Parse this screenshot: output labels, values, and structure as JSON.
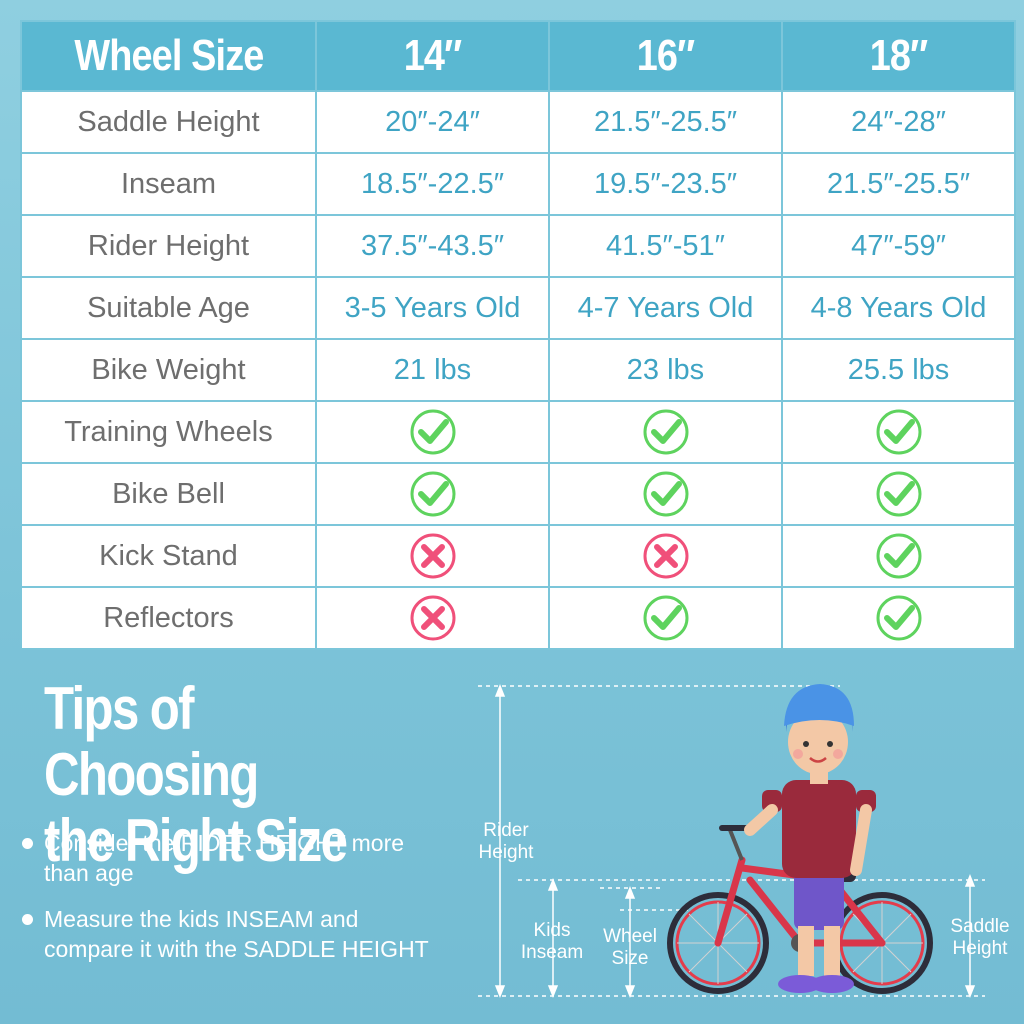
{
  "table": {
    "header": [
      "Wheel Size",
      "14″",
      "16″",
      "18″"
    ],
    "rows": [
      {
        "label": "Saddle Height",
        "values": [
          "20″-24″",
          "21.5″-25.5″",
          "24″-28″"
        ]
      },
      {
        "label": "Inseam",
        "values": [
          "18.5″-22.5″",
          "19.5″-23.5″",
          "21.5″-25.5″"
        ]
      },
      {
        "label": "Rider Height",
        "values": [
          "37.5″-43.5″",
          "41.5″-51″",
          "47″-59″"
        ]
      },
      {
        "label": "Suitable Age",
        "values": [
          "3-5 Years Old",
          "4-7 Years Old",
          "4-8 Years Old"
        ]
      },
      {
        "label": "Bike Weight",
        "values": [
          "21 lbs",
          "23 lbs",
          "25.5 lbs"
        ]
      },
      {
        "label": "Training Wheels",
        "values": [
          "check-icon",
          "check-icon",
          "check-icon"
        ]
      },
      {
        "label": "Bike Bell",
        "values": [
          "check-icon",
          "check-icon",
          "check-icon"
        ]
      },
      {
        "label": "Kick Stand",
        "values": [
          "cross-icon",
          "cross-icon",
          "check-icon"
        ]
      },
      {
        "label": "Reflectors",
        "values": [
          "cross-icon",
          "check-icon",
          "check-icon"
        ]
      }
    ]
  },
  "tips": {
    "title_line1": "Tips of Choosing",
    "title_line2": "the Right Size",
    "items": [
      "Consider the RIDER HEIGHT more than age",
      "Measure the kids INSEAM and compare it with the SADDLE HEIGHT"
    ]
  },
  "illustration": {
    "rider_height": [
      "Rider",
      "Height"
    ],
    "kids_inseam": [
      "Kids",
      "Inseam"
    ],
    "wheel_size": [
      "Wheel",
      "Size"
    ],
    "saddle_height": [
      "Saddle",
      "Height"
    ]
  },
  "colors": {
    "background": "#7cc3d8",
    "header": "#5ab8d2",
    "value_text": "#3fa4c4",
    "label_text": "#6e6e6e",
    "check": "#5ed35e",
    "cross": "#f0507a"
  }
}
